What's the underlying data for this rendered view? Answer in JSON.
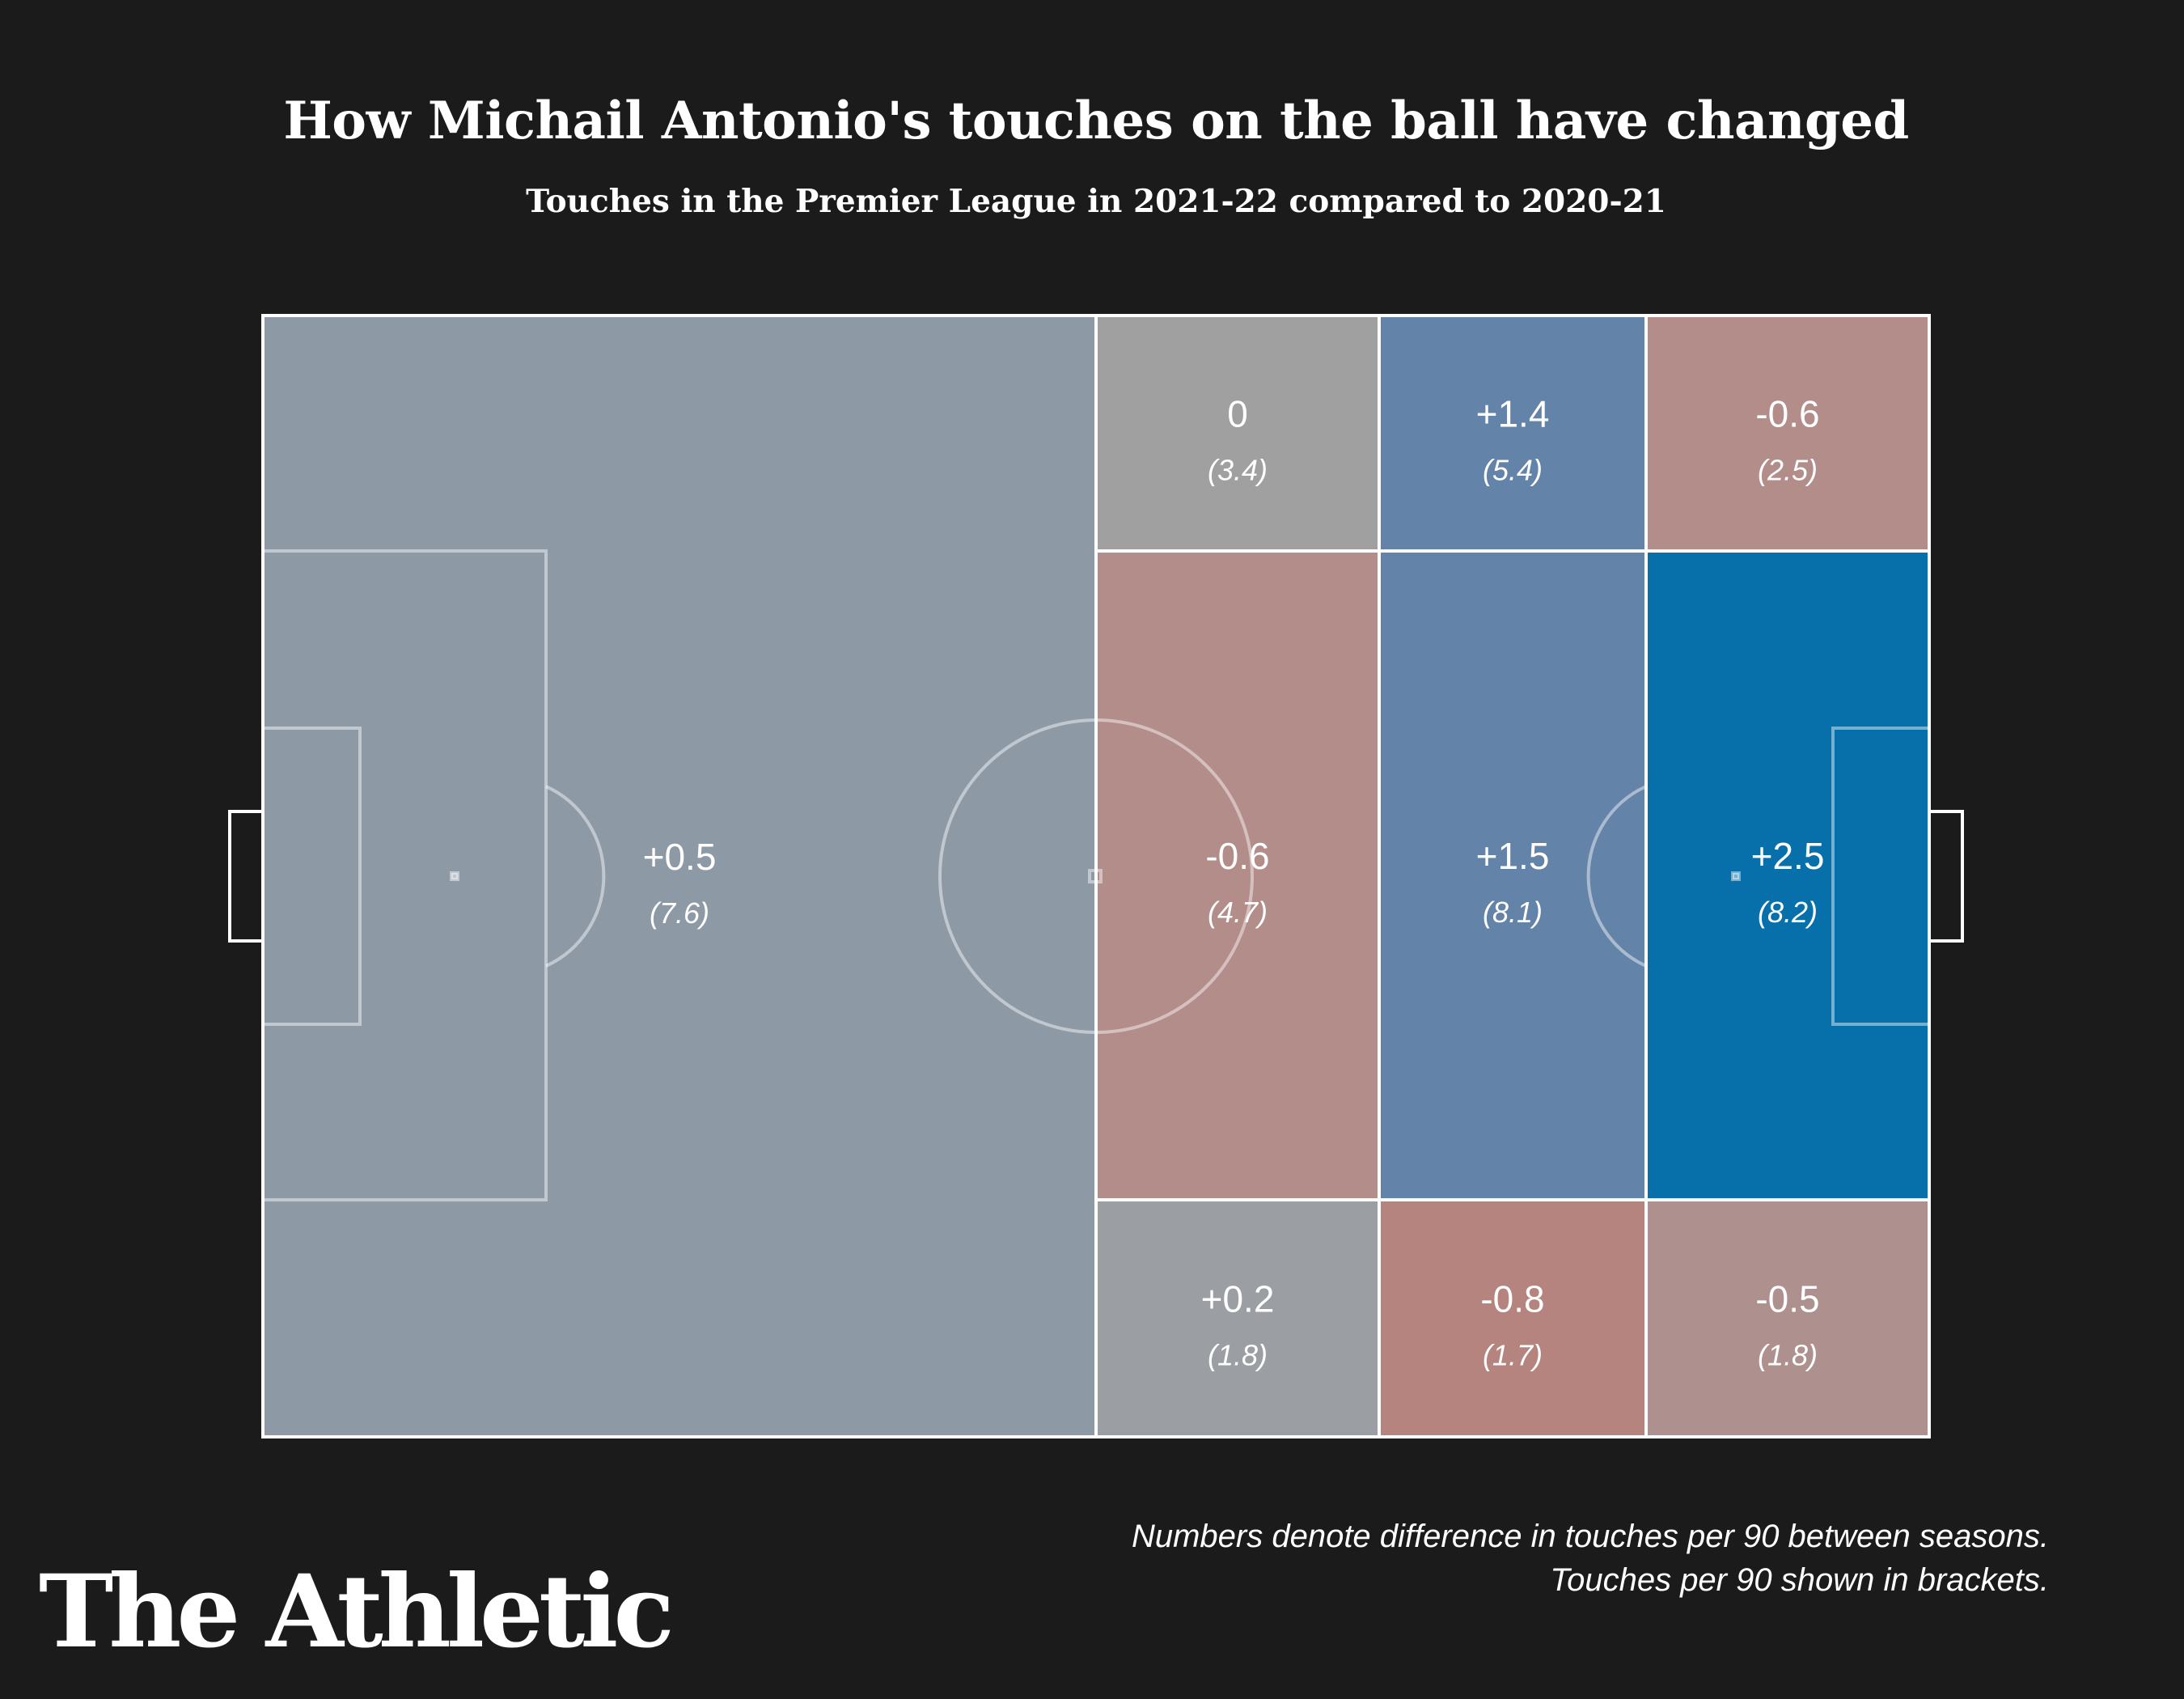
{
  "header": {
    "title": "How Michail Antonio's touches on the ball have changed",
    "subtitle": "Touches in the Premier League in 2021-22 compared to 2020-21"
  },
  "chart_data": {
    "type": "heatmap",
    "zones": [
      {
        "id": "own-half",
        "diff": "+0.5",
        "per90": "(7.6)",
        "color": "#8e99a6"
      },
      {
        "id": "mid-top",
        "diff": "0",
        "per90": "(3.4)",
        "color": "#a0a0a0"
      },
      {
        "id": "mid-center",
        "diff": "-0.6",
        "per90": "(4.7)",
        "color": "#b28d8a"
      },
      {
        "id": "mid-bottom",
        "diff": "+0.2",
        "per90": "(1.8)",
        "color": "#9b9ea3"
      },
      {
        "id": "att-top",
        "diff": "+1.4",
        "per90": "(5.4)",
        "color": "#6483a8"
      },
      {
        "id": "att-center",
        "diff": "+1.5",
        "per90": "(8.1)",
        "color": "#6483a8"
      },
      {
        "id": "att-bottom",
        "diff": "-0.8",
        "per90": "(1.7)",
        "color": "#b5847f"
      },
      {
        "id": "box-top",
        "diff": "-0.6",
        "per90": "(2.5)",
        "color": "#b28d8a"
      },
      {
        "id": "box-center",
        "diff": "+2.5",
        "per90": "(8.2)",
        "color": "#0770ab"
      },
      {
        "id": "box-bottom",
        "diff": "-0.5",
        "per90": "(1.8)",
        "color": "#ae918f"
      }
    ]
  },
  "footer": {
    "note_line1": "Numbers denote difference in touches per 90 between seasons.",
    "note_line2": "Touches per 90 shown in brackets.",
    "brand": "The Athletic"
  }
}
